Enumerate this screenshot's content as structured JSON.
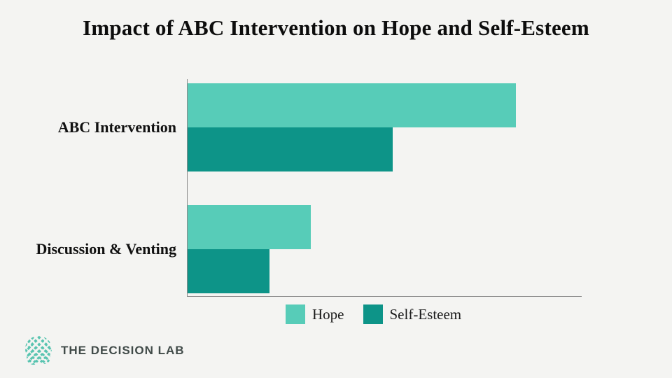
{
  "chart_data": {
    "type": "bar",
    "orientation": "horizontal",
    "title": "Impact of ABC Intervention on Hope and Self-Esteem",
    "categories": [
      "ABC Intervention",
      "Discussion & Venting"
    ],
    "series": [
      {
        "name": "Hope",
        "color": "#57ccb8",
        "values": [
          0.8,
          0.3
        ]
      },
      {
        "name": "Self-Esteem",
        "color": "#0d9488",
        "values": [
          0.5,
          0.2
        ]
      }
    ],
    "xlabel": "",
    "ylabel": "",
    "xlim": [
      0,
      0.96
    ],
    "axis_tick_labels_visible": false,
    "gridlines": false,
    "legend_position": "bottom-center",
    "legend_entries": [
      "Hope",
      "Self-Esteem"
    ]
  },
  "footer": {
    "logo_text": "THE DECISION LAB"
  },
  "colors": {
    "background": "#f4f4f2",
    "axis": "#8c8c8c",
    "title_text": "#0d0d0d",
    "hope": "#57ccb8",
    "self_esteem": "#0d9488",
    "logo_icon": "#58c4b0",
    "logo_text": "#414b49"
  }
}
